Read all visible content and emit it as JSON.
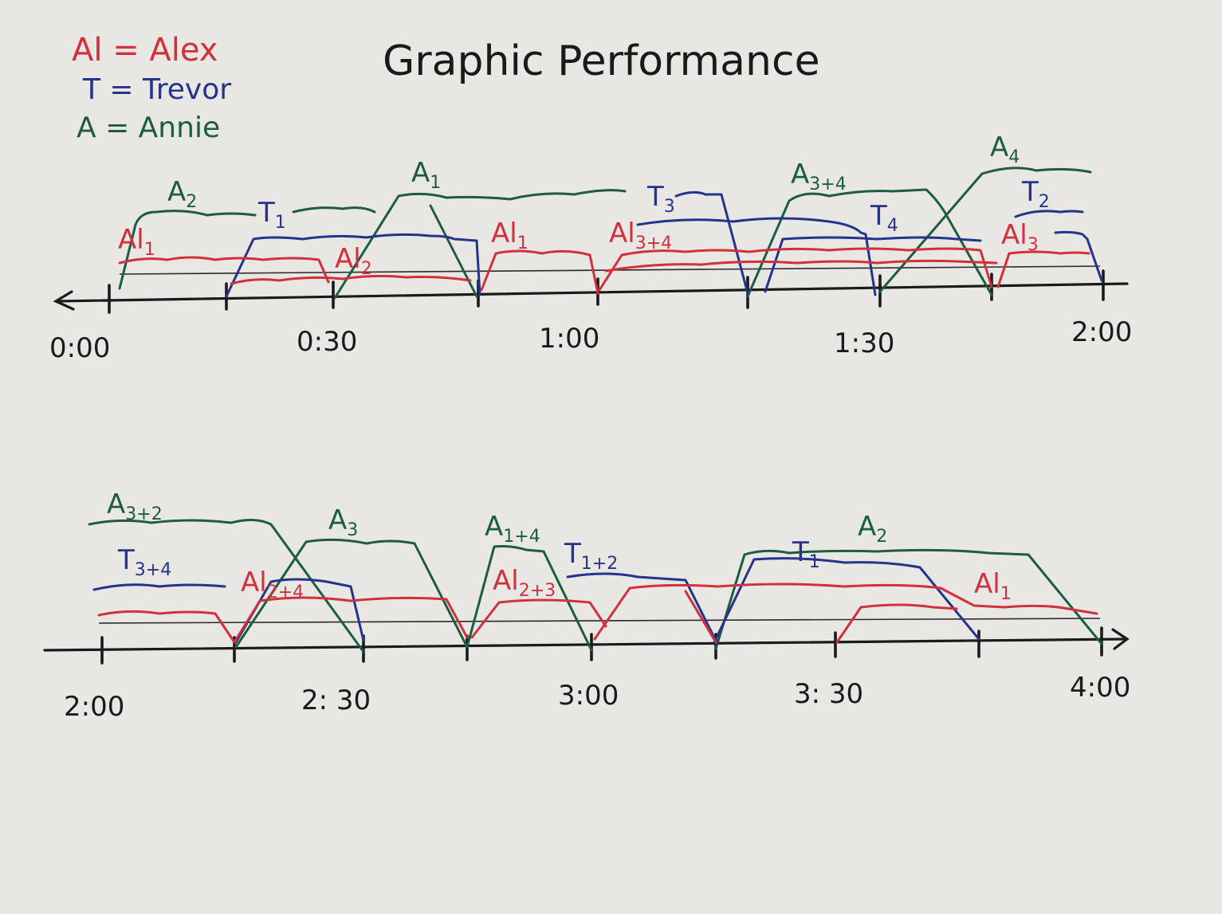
{
  "title": "Graphic Performance",
  "legend": [
    {
      "text": "Al = Alex",
      "color": "#d0313b"
    },
    {
      "text": "T = Trevor",
      "color": "#24338c"
    },
    {
      "text": "A = Annie",
      "color": "#1c5c40"
    }
  ],
  "colors": {
    "alex": "#d0313b",
    "trevor": "#24338c",
    "annie": "#1c5c40",
    "ink": "#1a1a1a"
  },
  "timeline1": {
    "times": [
      "0:00",
      "0:30",
      "1:00",
      "1:30",
      "2:00"
    ],
    "labels": [
      {
        "who": "annie",
        "main": "A",
        "sub": "2"
      },
      {
        "who": "trevor",
        "main": "T",
        "sub": "1"
      },
      {
        "who": "annie",
        "main": "A",
        "sub": "1"
      },
      {
        "who": "trevor",
        "main": "T",
        "sub": "3"
      },
      {
        "who": "annie",
        "main": "A",
        "sub": "3+4"
      },
      {
        "who": "annie",
        "main": "A",
        "sub": "4"
      },
      {
        "who": "trevor",
        "main": "T",
        "sub": "4"
      },
      {
        "who": "trevor",
        "main": "T",
        "sub": "2"
      },
      {
        "who": "alex",
        "main": "Al",
        "sub": "1"
      },
      {
        "who": "alex",
        "main": "Al",
        "sub": "2"
      },
      {
        "who": "alex",
        "main": "Al",
        "sub": "1"
      },
      {
        "who": "alex",
        "main": "Al",
        "sub": "3+4"
      },
      {
        "who": "alex",
        "main": "Al",
        "sub": "3"
      }
    ]
  },
  "timeline2": {
    "times": [
      "2:00",
      "2: 30",
      "3:00",
      "3: 30",
      "4:00"
    ],
    "labels": [
      {
        "who": "annie",
        "main": "A",
        "sub": "3+2"
      },
      {
        "who": "trevor",
        "main": "T",
        "sub": "3+4"
      },
      {
        "who": "annie",
        "main": "A",
        "sub": "3"
      },
      {
        "who": "alex",
        "main": "Al",
        "sub": "2+4"
      },
      {
        "who": "annie",
        "main": "A",
        "sub": "1+4"
      },
      {
        "who": "alex",
        "main": "Al",
        "sub": "2+3"
      },
      {
        "who": "trevor",
        "main": "T",
        "sub": "1+2"
      },
      {
        "who": "trevor",
        "main": "T",
        "sub": "1"
      },
      {
        "who": "annie",
        "main": "A",
        "sub": "2"
      },
      {
        "who": "alex",
        "main": "Al",
        "sub": "1"
      }
    ]
  }
}
